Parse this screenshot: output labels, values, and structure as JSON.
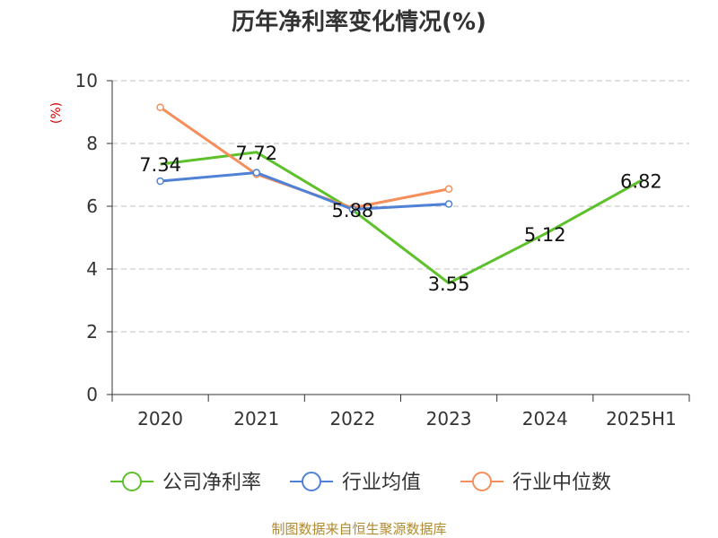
{
  "chart_data": {
    "type": "line",
    "title": "历年净利率变化情况(%)",
    "ylabel": "(%)",
    "xlabel": "",
    "categories": [
      "2020",
      "2021",
      "2022",
      "2023",
      "2024",
      "2025H1"
    ],
    "ylim": [
      0,
      10
    ],
    "yticks": [
      0,
      2,
      4,
      6,
      8,
      10
    ],
    "grid": true,
    "legend_position": "bottom",
    "series": [
      {
        "name": "公司净利率",
        "color": "#5cc12b",
        "values": [
          7.34,
          7.72,
          5.88,
          3.55,
          5.12,
          6.82
        ],
        "labels": [
          "7.34",
          "7.72",
          "5.88",
          "3.55",
          "5.12",
          "6.82"
        ]
      },
      {
        "name": "行业均值",
        "color": "#4f82d6",
        "values": [
          6.8,
          7.07,
          5.9,
          6.07,
          null,
          null
        ]
      },
      {
        "name": "行业中位数",
        "color": "#f58e5b",
        "values": [
          9.15,
          7.02,
          5.95,
          6.55,
          null,
          null
        ]
      }
    ]
  },
  "footer": {
    "source": "制图数据来自恒生聚源数据库"
  }
}
